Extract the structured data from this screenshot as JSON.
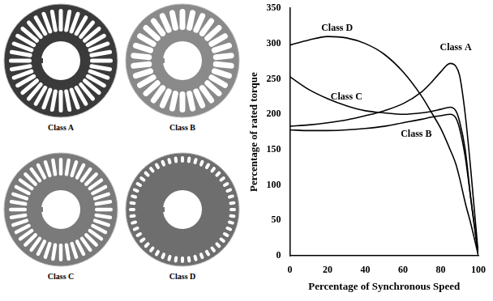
{
  "chart_data": {
    "type": "line",
    "x_label": "Percentage of Synchronous Speed",
    "y_label": "Percentage of rated torque",
    "x": [
      0,
      10,
      20,
      30,
      40,
      50,
      60,
      70,
      75,
      80,
      85,
      88,
      90,
      93,
      96,
      100
    ],
    "series": [
      {
        "name": "Class A",
        "color": "#000000",
        "marker": "none",
        "line_style": "solid",
        "values": [
          183,
          185,
          188,
          192,
          198,
          205,
          215,
          232,
          245,
          260,
          272,
          268,
          255,
          200,
          120,
          0
        ]
      },
      {
        "name": "Class B",
        "color": "#000000",
        "marker": "none",
        "line_style": "solid",
        "values": [
          178,
          177,
          177,
          178,
          180,
          183,
          188,
          193,
          196,
          198,
          200,
          195,
          180,
          140,
          80,
          0
        ]
      },
      {
        "name": "Class C",
        "color": "#000000",
        "marker": "none",
        "line_style": "solid",
        "values": [
          253,
          235,
          222,
          212,
          205,
          202,
          200,
          202,
          204,
          207,
          210,
          205,
          190,
          150,
          80,
          0
        ]
      },
      {
        "name": "Class D",
        "color": "#000000",
        "marker": "none",
        "line_style": "solid",
        "values": [
          298,
          305,
          310,
          308,
          300,
          285,
          260,
          225,
          203,
          180,
          150,
          130,
          110,
          75,
          45,
          0
        ]
      }
    ],
    "xlim": [
      0,
      100
    ],
    "xticks": [
      0,
      20,
      40,
      60,
      80,
      100
    ],
    "ylim": [
      0,
      350
    ],
    "yticks": [
      0,
      50,
      100,
      150,
      200,
      250,
      300,
      350
    ],
    "grid": false
  },
  "images": [
    {
      "caption": "Class A"
    },
    {
      "caption": "Class B"
    },
    {
      "caption": "Class C"
    },
    {
      "caption": "Class D"
    }
  ]
}
